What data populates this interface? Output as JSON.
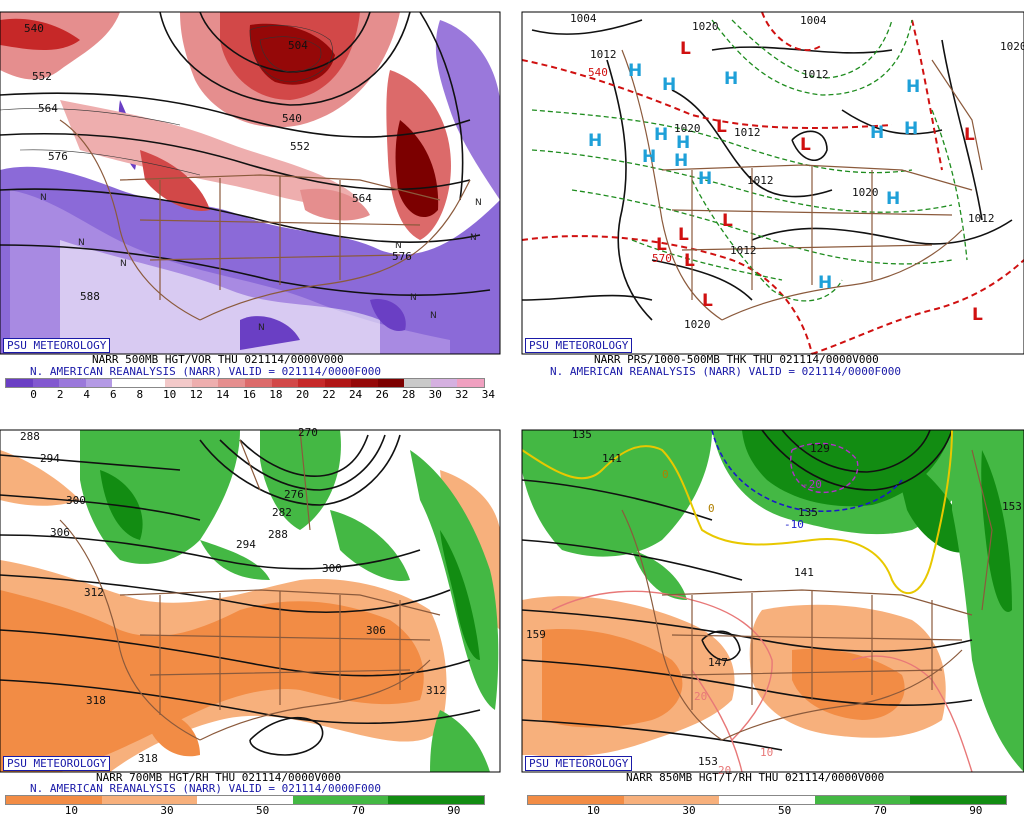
{
  "panels": [
    {
      "id": "tl",
      "tag": "PSU METEOROLOGY",
      "caption1": "NARR 500MB HGT/VOR THU 021114/0000V000",
      "caption2": "N. AMERICAN REANALYSIS (NARR) VALID = 021114/0000F000",
      "contour_labels": [
        "540",
        "552",
        "564",
        "576",
        "504",
        "540",
        "552",
        "564",
        "576",
        "588"
      ],
      "pressure_markers": [
        "N",
        "N",
        "N",
        "N",
        "N",
        "N",
        "N",
        "N",
        "N"
      ],
      "colorbar_ticks": [
        "0",
        "2",
        "4",
        "6",
        "8",
        "10",
        "12",
        "14",
        "16",
        "18",
        "20",
        "22",
        "24",
        "26",
        "28",
        "30",
        "32",
        "34"
      ],
      "colorbar_colors": [
        "#6a3fc4",
        "#8258d0",
        "#9a78db",
        "#b49ae5",
        "#ffffff",
        "#ffffff",
        "#f3c9c9",
        "#eeaeae",
        "#e58e8e",
        "#dc6a6a",
        "#d24848",
        "#c62828",
        "#b01515",
        "#950808",
        "#7c0000",
        "#c9c9c9",
        "#d5b0e0",
        "#f0a0c0"
      ]
    },
    {
      "id": "tr",
      "tag": "PSU METEOROLOGY",
      "caption1": "NARR PRS/1000-500MB THK THU 021114/0000V000",
      "caption2": "N. AMERICAN REANALYSIS (NARR) VALID = 021114/0000F000",
      "contour_labels": [
        "1004",
        "1012",
        "1020",
        "1004",
        "1012",
        "1020",
        "1012",
        "1020",
        "1012",
        "1012",
        "1020",
        "1012",
        "540",
        "570",
        "1020"
      ],
      "pressure_markers": [
        "L",
        "L",
        "L",
        "L",
        "L",
        "L",
        "L",
        "L",
        "L",
        "L",
        "H",
        "H",
        "H",
        "H",
        "H",
        "H",
        "H",
        "H",
        "H",
        "H",
        "H",
        "H",
        "H",
        "H"
      ],
      "colorbar_ticks": [],
      "colorbar_colors": []
    },
    {
      "id": "bl",
      "tag": "PSU METEOROLOGY",
      "caption1": "NARR 700MB HGT/RH THU 021114/0000V000",
      "caption2": "N. AMERICAN REANALYSIS (NARR) VALID = 021114/0000F000",
      "contour_labels": [
        "288",
        "294",
        "300",
        "306",
        "270",
        "276",
        "282",
        "288",
        "294",
        "300",
        "312",
        "306",
        "318",
        "312",
        "318"
      ],
      "pressure_markers": [],
      "colorbar_ticks": [
        "10",
        "30",
        "50",
        "70",
        "90"
      ],
      "colorbar_colors": [
        "#f28c45",
        "#f7b07c",
        "#ffffff",
        "#44b844",
        "#128c12"
      ]
    },
    {
      "id": "br",
      "tag": "PSU METEOROLOGY",
      "caption1": "NARR 850MB HGT/T/RH THU 021114/0000V000",
      "caption2": "",
      "contour_labels": [
        "135",
        "141",
        "129",
        "-20",
        "135",
        "-10",
        "141",
        "147",
        "153",
        "159",
        "153",
        "20",
        "10",
        "0",
        "0",
        "20"
      ],
      "pressure_markers": [],
      "colorbar_ticks": [
        "10",
        "30",
        "50",
        "70",
        "90"
      ],
      "colorbar_colors": [
        "#f28c45",
        "#f7b07c",
        "#ffffff",
        "#44b844",
        "#128c12"
      ]
    }
  ]
}
